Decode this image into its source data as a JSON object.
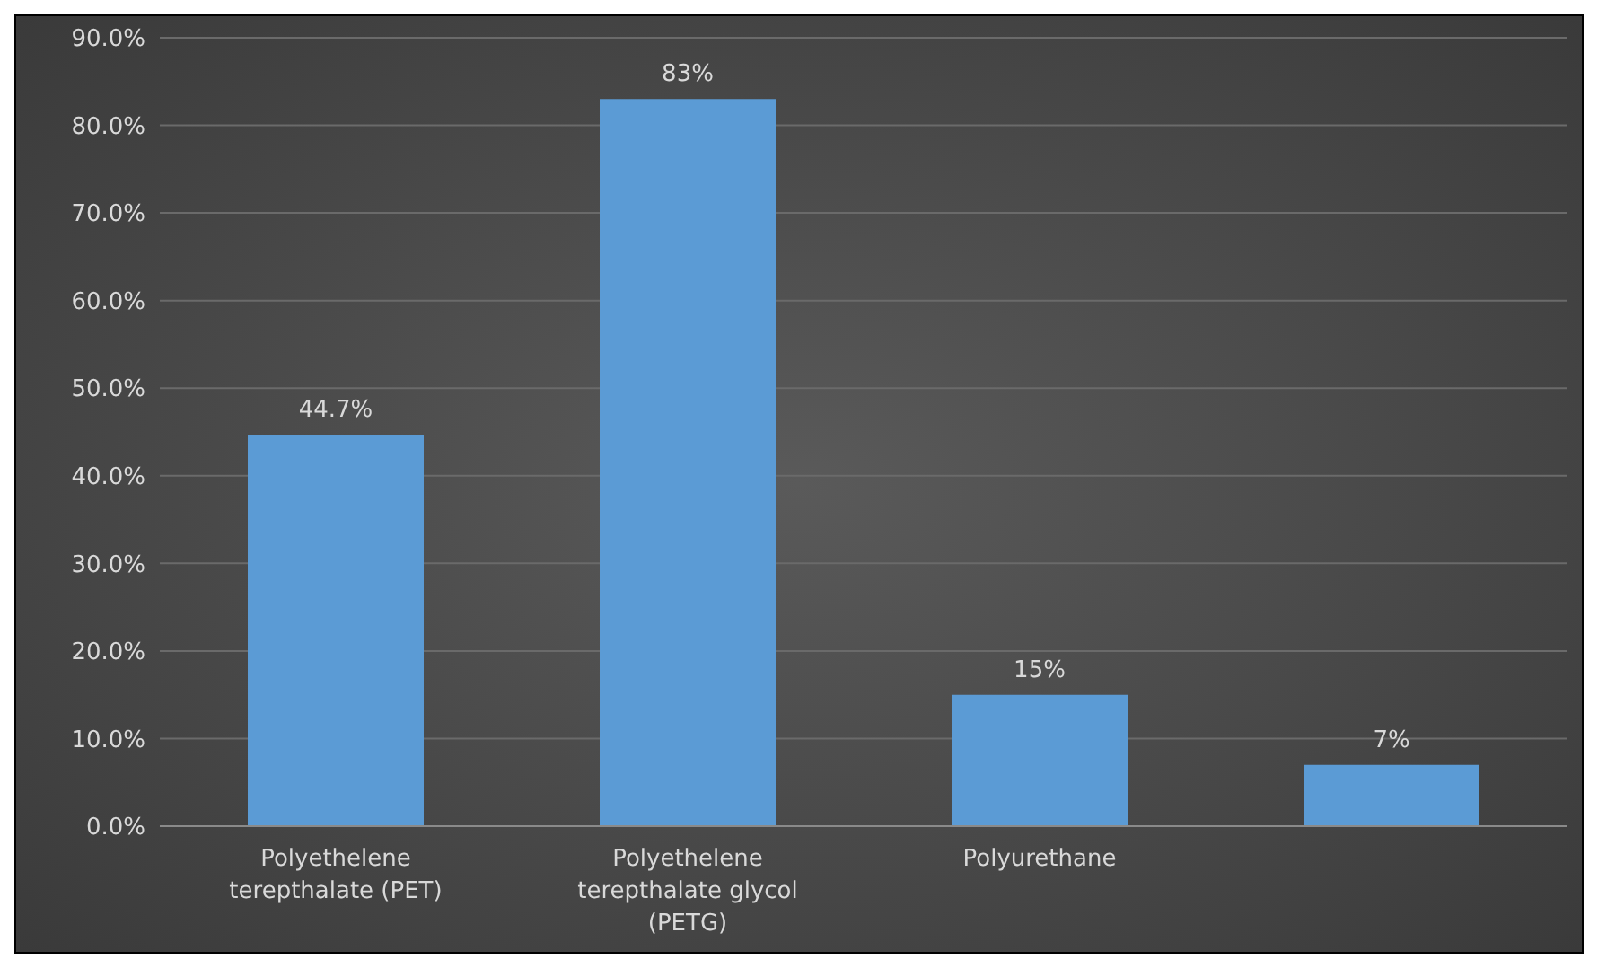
{
  "chart_data": {
    "type": "bar",
    "categories": [
      "Polyethelene terepthalate (PET)",
      "Polyethelene terepthalate glycol (PETG)",
      "Polyurethane",
      null
    ],
    "values": [
      44.7,
      83,
      15,
      7
    ],
    "color": "#5b9bd5",
    "value_labels": [
      "44.7%",
      "83%",
      "15%",
      "7%"
    ],
    "ylim": [
      0,
      90
    ],
    "yticks": [
      {
        "value": 0,
        "label": "0.0%"
      },
      {
        "value": 10,
        "label": "10.0%"
      },
      {
        "value": 20,
        "label": "20.0%"
      },
      {
        "value": 30,
        "label": "30.0%"
      },
      {
        "value": 40,
        "label": "40.0%"
      },
      {
        "value": 50,
        "label": "50.0%"
      },
      {
        "value": 60,
        "label": "60.0%"
      },
      {
        "value": 70,
        "label": "70.0%"
      },
      {
        "value": 80,
        "label": "80.0%"
      },
      {
        "value": 90,
        "label": "90.0%"
      }
    ],
    "grid": "y",
    "legend": false
  }
}
